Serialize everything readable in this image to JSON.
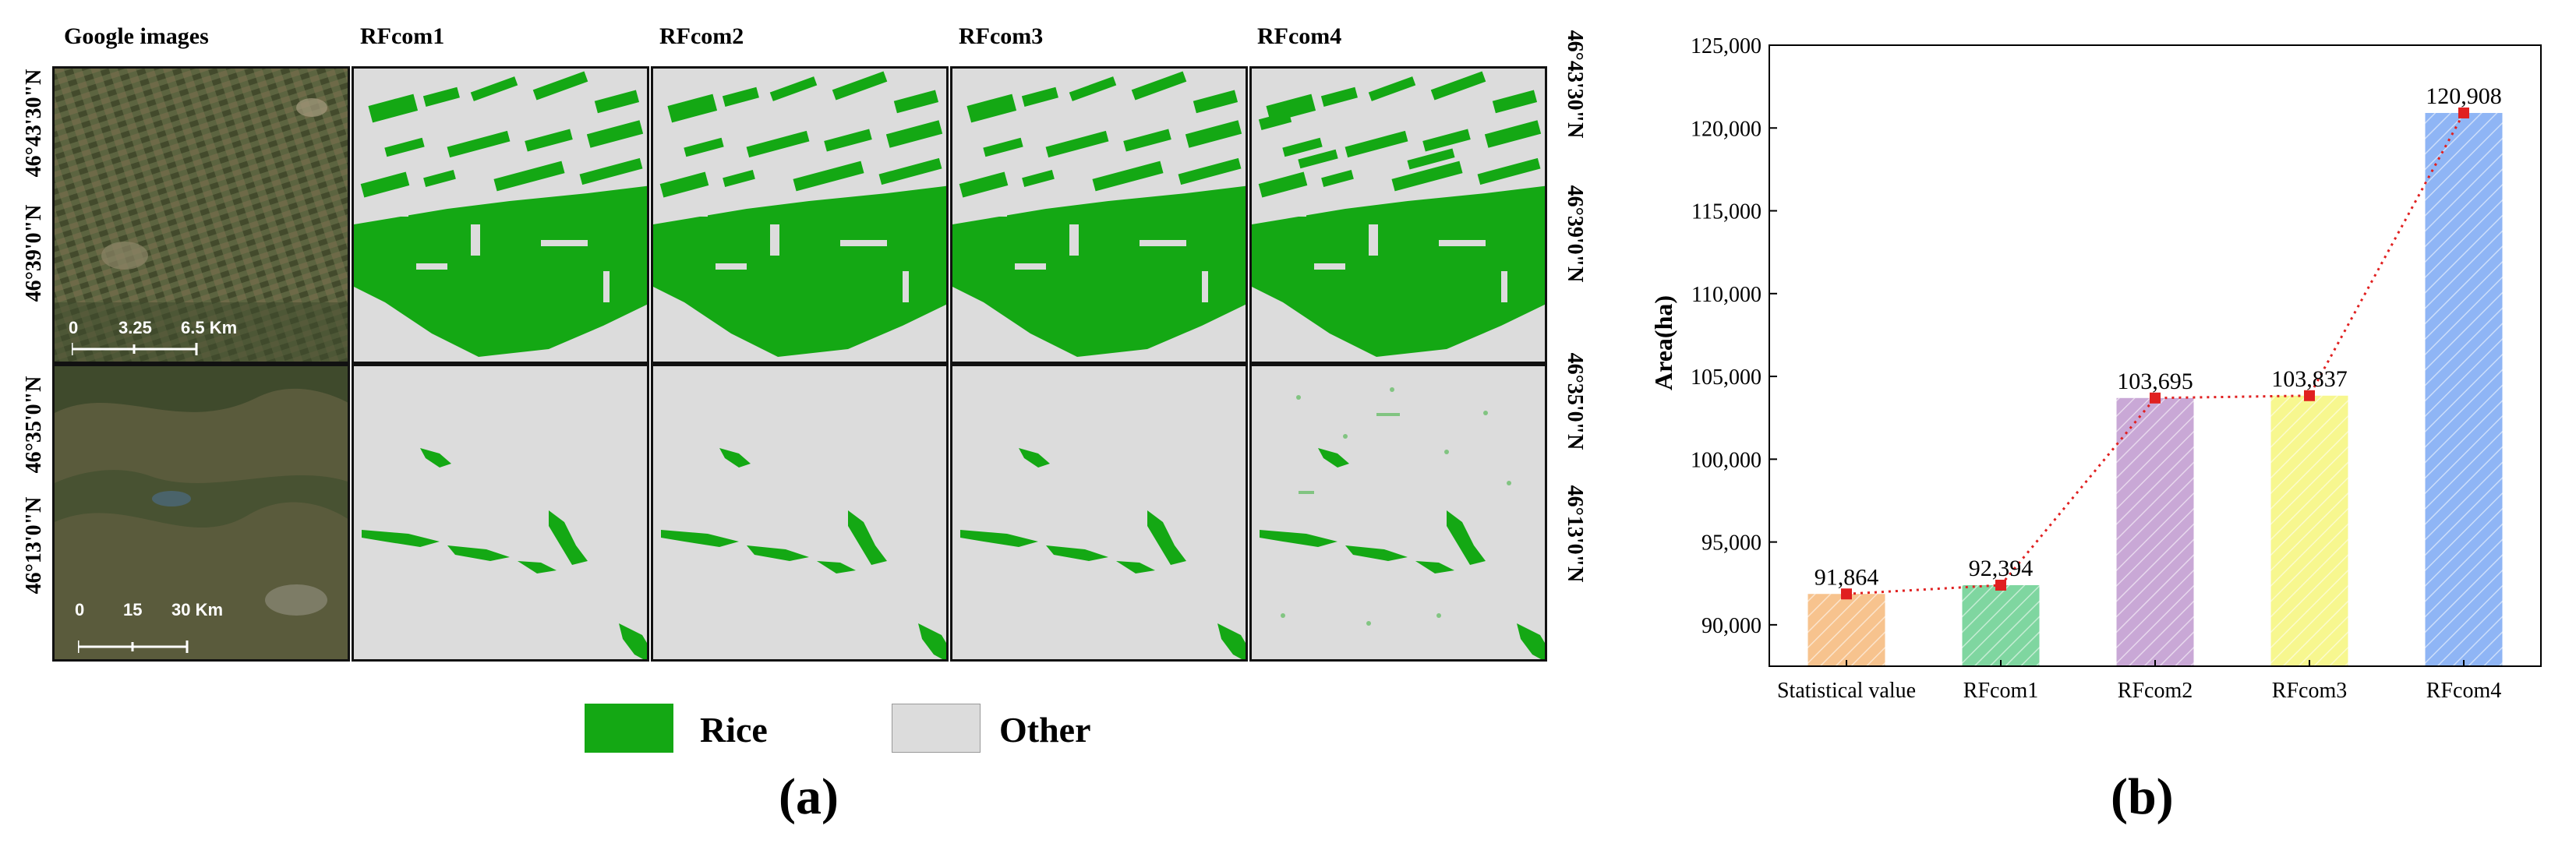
{
  "panel_a": {
    "columns": [
      "Google images",
      "RFcom1",
      "RFcom2",
      "RFcom3",
      "RFcom4"
    ],
    "top_row": {
      "lat_left": [
        "46°43'30\"N",
        "46°39'0\"N"
      ],
      "lat_right": [
        "46°43'30\"N",
        "46°39'0\"N"
      ],
      "scale_ticks": [
        "0",
        "3.25",
        "6.5 Km"
      ]
    },
    "bottom_row": {
      "lat_left": [
        "46°35'0\"N",
        "46°13'0\"N"
      ],
      "lat_right": [
        "46°35'0\"N",
        "46°13'0\"N"
      ],
      "scale_ticks": [
        "0",
        "15",
        "30 Km"
      ]
    },
    "legend": [
      {
        "label": "Rice",
        "color": "#14a814"
      },
      {
        "label": "Other",
        "color": "#dcdcdc"
      }
    ],
    "letter": "(a)"
  },
  "panel_b": {
    "letter": "(b)"
  },
  "colors": {
    "rice": "#14a814",
    "other": "#dcdcdc",
    "line": "#e02020",
    "bars": [
      "#f7c38e",
      "#7fd6a0",
      "#c9a8d6",
      "#f7f78f",
      "#8fb5f5"
    ]
  },
  "chart_data": {
    "type": "bar",
    "categories": [
      "Statistical value",
      "RFcom1",
      "RFcom2",
      "RFcom3",
      "RFcom4"
    ],
    "values": [
      91864,
      92394,
      103695,
      103837,
      120908
    ],
    "data_labels": [
      "91,864",
      "92,394",
      "103,695",
      "103,837",
      "120,908"
    ],
    "ylabel": "Area(ha)",
    "xlabel": "",
    "ylim": [
      87500,
      125000
    ],
    "yticks": [
      90000,
      95000,
      100000,
      105000,
      110000,
      115000,
      120000,
      125000
    ],
    "ytick_labels": [
      "90,000",
      "95,000",
      "100,000",
      "105,000",
      "110,000",
      "115,000",
      "120,000",
      "125,000"
    ],
    "bar_pattern": "diagonal-hatch",
    "overlay_line": "red dotted line with square markers at bar tops",
    "grid": false
  }
}
